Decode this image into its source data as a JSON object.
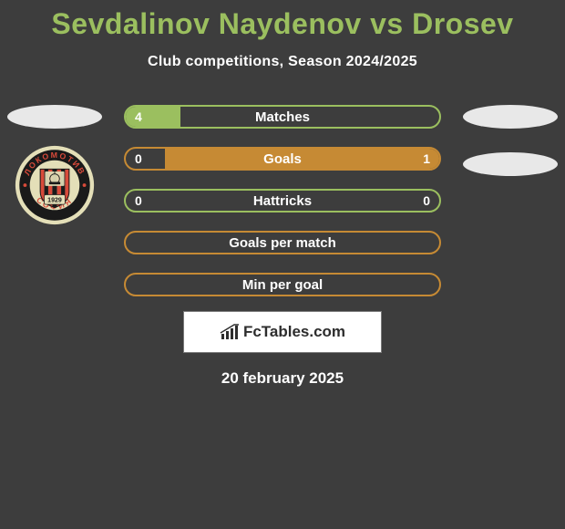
{
  "title": "Sevdalinov Naydenov vs Drosev",
  "title_color": "#9bbf5f",
  "subtitle": "Club competitions, Season 2024/2025",
  "ellipse_color": "#e8e8e8",
  "background_color": "#3d3d3d",
  "badge": {
    "outer_color": "#e4dfb8",
    "ring_bg": "#1a1a1a",
    "ring_text_color": "#d84a3a",
    "top_text": "ЛОКОМОТИВ",
    "bottom_text": "СОФИЯ",
    "year": "1929",
    "stripe_colors": [
      "#d84a3a",
      "#1a1a1a"
    ],
    "shield_bg": "#e4dfb8"
  },
  "stats": [
    {
      "label": "Matches",
      "left_value": "4",
      "right_value": "",
      "left_pct": 18,
      "right_pct": 0,
      "border_color": "#9bbf5f",
      "fill_left_color": "#9bbf5f",
      "fill_right_color": "#c68a34"
    },
    {
      "label": "Goals",
      "left_value": "0",
      "right_value": "1",
      "left_pct": 0,
      "right_pct": 88,
      "border_color": "#c68a34",
      "fill_left_color": "#9bbf5f",
      "fill_right_color": "#c68a34"
    },
    {
      "label": "Hattricks",
      "left_value": "0",
      "right_value": "0",
      "left_pct": 0,
      "right_pct": 0,
      "border_color": "#9bbf5f",
      "fill_left_color": "#9bbf5f",
      "fill_right_color": "#c68a34"
    },
    {
      "label": "Goals per match",
      "left_value": "",
      "right_value": "",
      "left_pct": 0,
      "right_pct": 0,
      "border_color": "#c68a34",
      "fill_left_color": "#9bbf5f",
      "fill_right_color": "#c68a34"
    },
    {
      "label": "Min per goal",
      "left_value": "",
      "right_value": "",
      "left_pct": 0,
      "right_pct": 0,
      "border_color": "#c68a34",
      "fill_left_color": "#9bbf5f",
      "fill_right_color": "#c68a34"
    }
  ],
  "footer_brand": "FcTables.com",
  "footer_date": "20 february 2025"
}
